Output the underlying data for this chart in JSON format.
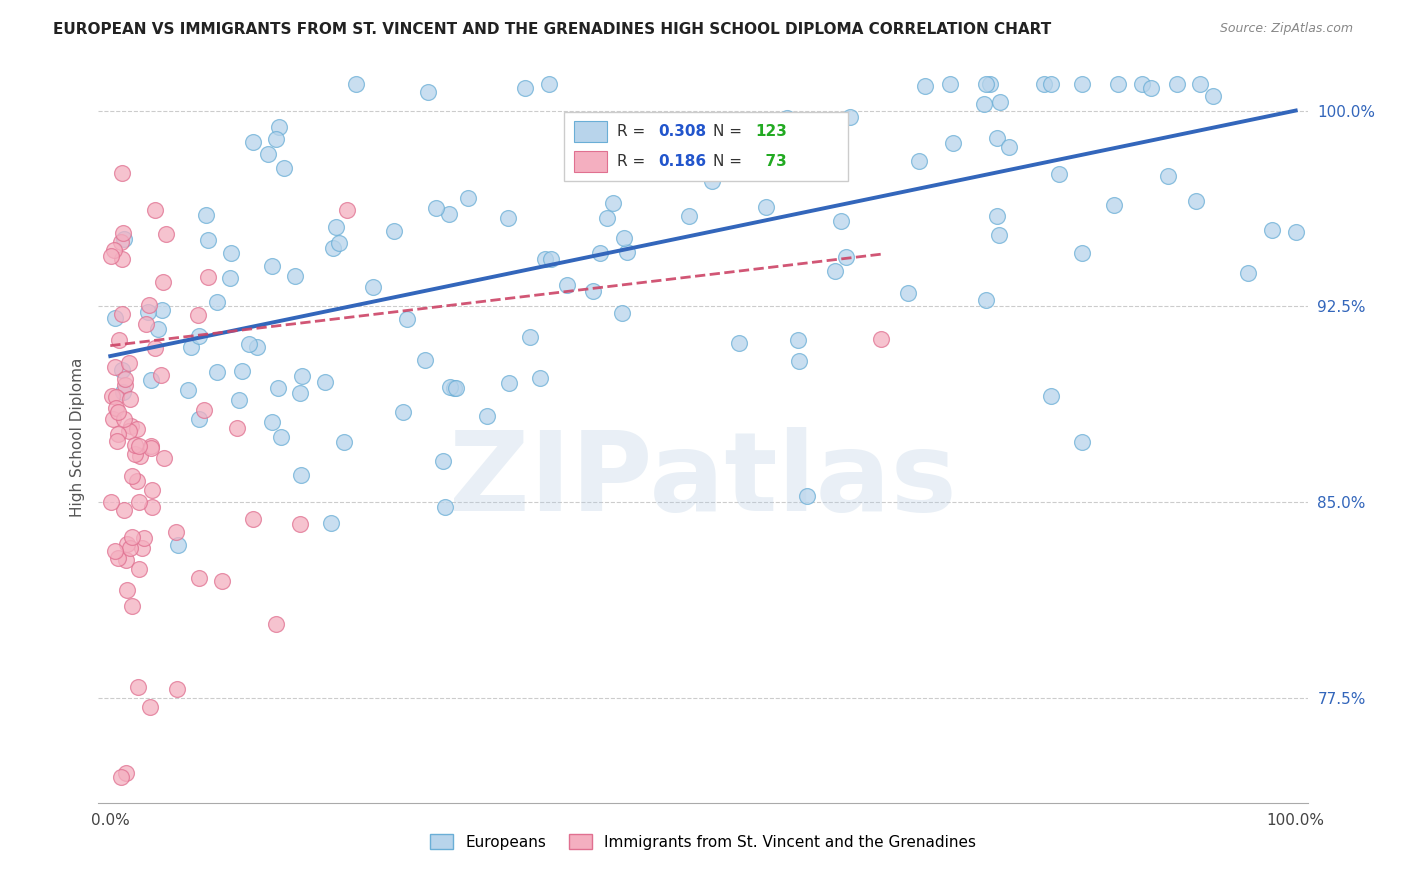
{
  "title": "EUROPEAN VS IMMIGRANTS FROM ST. VINCENT AND THE GRENADINES HIGH SCHOOL DIPLOMA CORRELATION CHART",
  "source": "Source: ZipAtlas.com",
  "ylabel": "High School Diploma",
  "watermark": "ZIPatlas",
  "xlim": [
    -0.01,
    1.01
  ],
  "ylim": [
    0.735,
    1.015
  ],
  "yticks": [
    0.775,
    0.85,
    0.925,
    1.0
  ],
  "ytick_labels": [
    "77.5%",
    "85.0%",
    "92.5%",
    "100.0%"
  ],
  "xtick_labels": [
    "0.0%",
    "100.0%"
  ],
  "blue_color": "#b8d4eb",
  "blue_edge": "#6aaed6",
  "pink_color": "#f4afc0",
  "pink_edge": "#e07090",
  "trend_blue": "#3366bb",
  "trend_pink": "#cc4466",
  "R_blue": 0.308,
  "N_blue": 123,
  "R_pink": 0.186,
  "N_pink": 73,
  "legend_R_color": "#2255cc",
  "legend_N_color": "#22aa22"
}
